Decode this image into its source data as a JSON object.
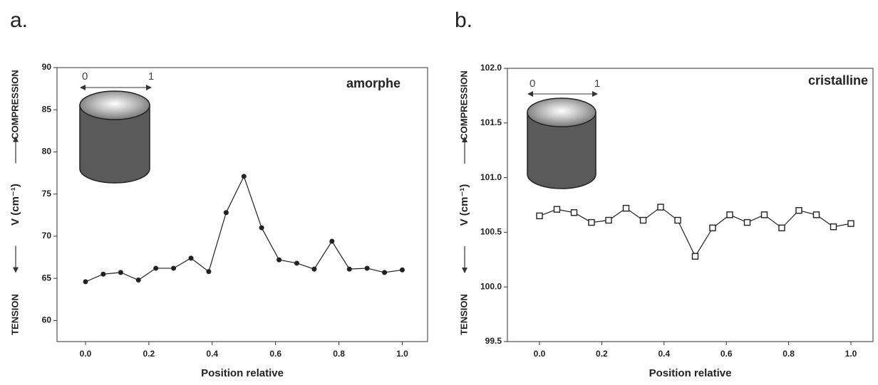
{
  "chart_data": [
    {
      "type": "line",
      "panel_label": "a.",
      "annotation": "amorphe",
      "inset_labels": [
        "0",
        "1"
      ],
      "x_label": "Position relative",
      "y_label": [
        "TENSION",
        "V (cm⁻¹)",
        "COMPRESSION"
      ],
      "marker": "circle",
      "color": "#222222",
      "x": [
        0,
        0.056,
        0.111,
        0.167,
        0.222,
        0.278,
        0.333,
        0.389,
        0.444,
        0.5,
        0.556,
        0.611,
        0.667,
        0.722,
        0.778,
        0.833,
        0.889,
        0.944,
        1.0
      ],
      "values": [
        64.6,
        65.5,
        65.7,
        64.8,
        66.2,
        66.2,
        67.4,
        65.8,
        72.8,
        77.1,
        71.0,
        67.2,
        66.8,
        66.1,
        69.4,
        66.1,
        66.2,
        65.7,
        66.0
      ],
      "xlim": [
        -0.09,
        1.08
      ],
      "ylim": [
        57.5,
        90
      ],
      "xticks": [
        {
          "value": 0,
          "label": "0.0"
        },
        0.2,
        0.4,
        0.6,
        0.8,
        {
          "value": 1,
          "label": "1.0"
        }
      ],
      "yticks": [
        60,
        65,
        70,
        75,
        80,
        85,
        90
      ]
    },
    {
      "type": "line",
      "panel_label": "b.",
      "annotation": "cristalline",
      "inset_labels": [
        "0",
        "1"
      ],
      "x_label": "Position relative",
      "y_label": [
        "TENSION",
        "V (cm⁻¹)",
        "COMPRESSION"
      ],
      "marker": "square",
      "color": "#222222",
      "x": [
        0,
        0.056,
        0.111,
        0.167,
        0.222,
        0.278,
        0.333,
        0.389,
        0.444,
        0.5,
        0.556,
        0.611,
        0.667,
        0.722,
        0.778,
        0.833,
        0.889,
        0.944,
        1.0
      ],
      "values": [
        100.65,
        100.71,
        100.68,
        100.59,
        100.61,
        100.72,
        100.61,
        100.73,
        100.61,
        100.28,
        100.54,
        100.66,
        100.59,
        100.66,
        100.54,
        100.7,
        100.66,
        100.55,
        100.58
      ],
      "xlim": [
        -0.103,
        1.071
      ],
      "ylim": [
        99.5,
        102.0
      ],
      "xticks": [
        {
          "value": 0,
          "label": "0.0"
        },
        0.2,
        0.4,
        0.6,
        0.8,
        {
          "value": 1,
          "label": "1.0"
        }
      ],
      "yticks": [
        99.5,
        {
          "value": 100,
          "label": "100.0"
        },
        100.5,
        {
          "value": 101,
          "label": "101.0"
        },
        101.5,
        {
          "value": 102,
          "label": "102.0"
        }
      ]
    }
  ]
}
